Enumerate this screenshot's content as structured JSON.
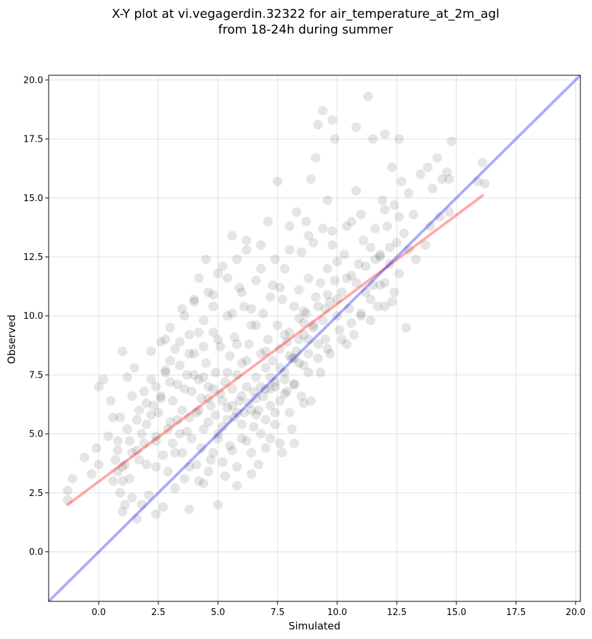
{
  "chart_data": {
    "type": "scatter",
    "title_lines": [
      "X-Y plot at vi.vegagerdin.32322 for air_temperature_at_2m_agl",
      "from 18-24h during summer"
    ],
    "xlabel": "Simulated",
    "ylabel": "Observed",
    "xlim": [
      -2.1,
      20.2
    ],
    "ylim": [
      -2.1,
      20.2
    ],
    "xticks": [
      0.0,
      2.5,
      5.0,
      7.5,
      10.0,
      12.5,
      15.0,
      17.5,
      20.0
    ],
    "yticks": [
      0.0,
      2.5,
      5.0,
      7.5,
      10.0,
      12.5,
      15.0,
      17.5,
      20.0
    ],
    "xtick_labels": [
      "0.0",
      "2.5",
      "5.0",
      "7.5",
      "10.0",
      "12.5",
      "15.0",
      "17.5",
      "20.0"
    ],
    "ytick_labels": [
      "0.0",
      "2.5",
      "5.0",
      "7.5",
      "10.0",
      "12.5",
      "15.0",
      "17.5",
      "20.0"
    ],
    "grid": true,
    "point_color": "#000000",
    "point_alpha": 0.1,
    "regression_line": {
      "x": [
        -1.3,
        16.1
      ],
      "y": [
        2.0,
        15.1
      ],
      "color": "#ff0000",
      "alpha": 0.33
    },
    "identity_line": {
      "x": [
        -2.1,
        20.2
      ],
      "y": [
        -2.1,
        20.2
      ],
      "color": "#0000ff",
      "alpha": 0.33
    },
    "points": [
      [
        -1.3,
        2.6
      ],
      [
        -1.3,
        2.2
      ],
      [
        -1.1,
        3.1
      ],
      [
        -0.6,
        4.0
      ],
      [
        -0.3,
        3.3
      ],
      [
        -0.1,
        4.4
      ],
      [
        0.0,
        3.7
      ],
      [
        0.0,
        7.0
      ],
      [
        0.2,
        7.3
      ],
      [
        0.4,
        4.9
      ],
      [
        0.5,
        6.4
      ],
      [
        0.6,
        5.7
      ],
      [
        0.7,
        3.9
      ],
      [
        0.8,
        4.3
      ],
      [
        0.8,
        3.4
      ],
      [
        0.9,
        5.7
      ],
      [
        0.9,
        2.5
      ],
      [
        1.0,
        3.0
      ],
      [
        1.0,
        1.7
      ],
      [
        1.0,
        8.5
      ],
      [
        1.1,
        3.7
      ],
      [
        1.1,
        2.0
      ],
      [
        1.2,
        7.4
      ],
      [
        1.3,
        4.7
      ],
      [
        1.3,
        3.1
      ],
      [
        1.4,
        6.6
      ],
      [
        1.4,
        2.3
      ],
      [
        1.5,
        7.8
      ],
      [
        1.6,
        4.3
      ],
      [
        1.6,
        1.4
      ],
      [
        1.7,
        6.0
      ],
      [
        1.7,
        3.9
      ],
      [
        1.8,
        2.0
      ],
      [
        1.9,
        6.8
      ],
      [
        1.9,
        4.6
      ],
      [
        2.0,
        3.7
      ],
      [
        2.0,
        5.4
      ],
      [
        2.1,
        2.4
      ],
      [
        2.2,
        8.5
      ],
      [
        2.2,
        7.3
      ],
      [
        2.3,
        6.2
      ],
      [
        2.4,
        4.7
      ],
      [
        2.4,
        3.6
      ],
      [
        2.4,
        1.6
      ],
      [
        2.5,
        5.9
      ],
      [
        2.6,
        8.9
      ],
      [
        2.6,
        6.6
      ],
      [
        2.7,
        4.1
      ],
      [
        2.7,
        1.9
      ],
      [
        2.8,
        7.7
      ],
      [
        2.9,
        5.2
      ],
      [
        2.9,
        3.4
      ],
      [
        3.0,
        9.5
      ],
      [
        3.0,
        8.1
      ],
      [
        3.1,
        6.4
      ],
      [
        3.1,
        4.6
      ],
      [
        3.2,
        2.7
      ],
      [
        3.3,
        7.1
      ],
      [
        3.3,
        5.6
      ],
      [
        3.4,
        8.9
      ],
      [
        3.5,
        10.3
      ],
      [
        3.5,
        6.0
      ],
      [
        3.5,
        4.2
      ],
      [
        3.6,
        3.1
      ],
      [
        3.7,
        7.5
      ],
      [
        3.7,
        5.1
      ],
      [
        3.8,
        9.2
      ],
      [
        3.8,
        1.8
      ],
      [
        3.9,
        6.8
      ],
      [
        3.9,
        4.8
      ],
      [
        4.0,
        8.4
      ],
      [
        4.0,
        10.7
      ],
      [
        4.1,
        5.9
      ],
      [
        4.1,
        3.7
      ],
      [
        4.2,
        7.3
      ],
      [
        4.2,
        11.6
      ],
      [
        4.3,
        6.5
      ],
      [
        4.3,
        4.4
      ],
      [
        4.4,
        9.8
      ],
      [
        4.4,
        2.9
      ],
      [
        4.5,
        8.0
      ],
      [
        4.5,
        12.4
      ],
      [
        4.6,
        5.5
      ],
      [
        4.6,
        7.0
      ],
      [
        4.7,
        6.2
      ],
      [
        4.7,
        3.9
      ],
      [
        4.8,
        9.3
      ],
      [
        4.8,
        10.9
      ],
      [
        4.9,
        5.8
      ],
      [
        4.9,
        7.6
      ],
      [
        5.0,
        11.8
      ],
      [
        5.0,
        4.8
      ],
      [
        5.0,
        2.0
      ],
      [
        5.1,
        6.7
      ],
      [
        5.1,
        8.7
      ],
      [
        5.2,
        12.1
      ],
      [
        5.2,
        5.3
      ],
      [
        5.3,
        7.2
      ],
      [
        5.3,
        3.2
      ],
      [
        5.4,
        10.0
      ],
      [
        5.4,
        6.1
      ],
      [
        5.5,
        8.3
      ],
      [
        5.5,
        4.5
      ],
      [
        5.6,
        13.4
      ],
      [
        5.6,
        6.9
      ],
      [
        5.7,
        5.7
      ],
      [
        5.7,
        9.1
      ],
      [
        5.8,
        7.5
      ],
      [
        5.8,
        2.8
      ],
      [
        5.9,
        11.2
      ],
      [
        5.9,
        6.4
      ],
      [
        6.0,
        8.0
      ],
      [
        6.0,
        4.8
      ],
      [
        6.1,
        10.4
      ],
      [
        6.1,
        5.9
      ],
      [
        6.2,
        7.0
      ],
      [
        6.2,
        12.8
      ],
      [
        6.3,
        6.3
      ],
      [
        6.3,
        8.8
      ],
      [
        6.4,
        4.2
      ],
      [
        6.4,
        9.6
      ],
      [
        6.5,
        6.8
      ],
      [
        6.5,
        5.3
      ],
      [
        6.6,
        11.5
      ],
      [
        6.6,
        7.4
      ],
      [
        6.7,
        6.0
      ],
      [
        6.7,
        3.7
      ],
      [
        6.8,
        8.4
      ],
      [
        6.8,
        13.0
      ],
      [
        6.9,
        6.6
      ],
      [
        6.9,
        10.1
      ],
      [
        7.0,
        7.8
      ],
      [
        7.0,
        5.6
      ],
      [
        7.1,
        9.0
      ],
      [
        7.1,
        14.0
      ],
      [
        7.2,
        6.9
      ],
      [
        7.2,
        4.8
      ],
      [
        7.3,
        8.1
      ],
      [
        7.3,
        11.3
      ],
      [
        7.4,
        7.2
      ],
      [
        7.4,
        5.9
      ],
      [
        7.5,
        9.6
      ],
      [
        7.5,
        15.7
      ],
      [
        7.6,
        8.6
      ],
      [
        7.6,
        6.4
      ],
      [
        7.7,
        10.7
      ],
      [
        7.7,
        4.2
      ],
      [
        7.8,
        7.6
      ],
      [
        7.8,
        12.0
      ],
      [
        7.9,
        8.9
      ],
      [
        7.9,
        6.8
      ],
      [
        8.0,
        9.3
      ],
      [
        8.0,
        13.8
      ],
      [
        8.1,
        8.2
      ],
      [
        8.1,
        5.2
      ],
      [
        8.2,
        10.4
      ],
      [
        8.2,
        7.1
      ],
      [
        8.3,
        14.4
      ],
      [
        8.3,
        8.5
      ],
      [
        8.4,
        11.1
      ],
      [
        8.4,
        9.0
      ],
      [
        8.5,
        6.6
      ],
      [
        8.5,
        12.7
      ],
      [
        8.6,
        9.7
      ],
      [
        8.6,
        7.9
      ],
      [
        8.7,
        14.0
      ],
      [
        8.7,
        10.1
      ],
      [
        8.8,
        8.4
      ],
      [
        8.8,
        11.6
      ],
      [
        8.9,
        6.4
      ],
      [
        8.9,
        15.8
      ],
      [
        9.0,
        9.5
      ],
      [
        9.0,
        13.1
      ],
      [
        9.1,
        10.8
      ],
      [
        9.1,
        16.7
      ],
      [
        9.2,
        8.8
      ],
      [
        9.2,
        18.1
      ],
      [
        9.3,
        11.4
      ],
      [
        9.3,
        7.6
      ],
      [
        9.4,
        13.7
      ],
      [
        9.4,
        18.7
      ],
      [
        9.5,
        10.3
      ],
      [
        9.5,
        9.0
      ],
      [
        9.6,
        12.0
      ],
      [
        9.6,
        14.9
      ],
      [
        9.7,
        10.6
      ],
      [
        9.7,
        8.4
      ],
      [
        9.8,
        13.6
      ],
      [
        9.8,
        18.3
      ],
      [
        9.9,
        11.5
      ],
      [
        9.9,
        17.5
      ],
      [
        10.0,
        10.0
      ],
      [
        10.0,
        12.3
      ],
      [
        10.1,
        9.4
      ],
      [
        10.2,
        11.0
      ],
      [
        10.3,
        12.6
      ],
      [
        10.4,
        8.8
      ],
      [
        10.5,
        10.3
      ],
      [
        10.6,
        14.0
      ],
      [
        10.6,
        11.7
      ],
      [
        10.7,
        9.2
      ],
      [
        10.8,
        15.3
      ],
      [
        10.8,
        18.0
      ],
      [
        10.9,
        12.2
      ],
      [
        11.0,
        10.1
      ],
      [
        11.1,
        13.2
      ],
      [
        11.2,
        11.0
      ],
      [
        11.3,
        19.3
      ],
      [
        11.4,
        12.9
      ],
      [
        11.5,
        11.3
      ],
      [
        11.5,
        17.5
      ],
      [
        11.6,
        13.7
      ],
      [
        11.7,
        10.4
      ],
      [
        11.8,
        12.5
      ],
      [
        11.9,
        14.9
      ],
      [
        12.0,
        11.4
      ],
      [
        12.0,
        17.7
      ],
      [
        12.1,
        13.8
      ],
      [
        12.2,
        12.2
      ],
      [
        12.3,
        10.6
      ],
      [
        12.3,
        16.3
      ],
      [
        12.4,
        14.7
      ],
      [
        12.5,
        13.1
      ],
      [
        12.6,
        11.8
      ],
      [
        12.6,
        17.5
      ],
      [
        12.7,
        15.7
      ],
      [
        12.8,
        13.5
      ],
      [
        12.9,
        9.5
      ],
      [
        13.0,
        12.8
      ],
      [
        13.2,
        14.3
      ],
      [
        13.3,
        12.4
      ],
      [
        13.5,
        16.0
      ],
      [
        13.7,
        13.0
      ],
      [
        13.8,
        16.3
      ],
      [
        13.9,
        13.8
      ],
      [
        14.0,
        15.4
      ],
      [
        14.2,
        16.7
      ],
      [
        14.3,
        14.2
      ],
      [
        14.4,
        15.8
      ],
      [
        14.6,
        16.1
      ],
      [
        14.7,
        14.4
      ],
      [
        14.8,
        17.4
      ],
      [
        14.7,
        15.8
      ],
      [
        15.9,
        15.7
      ],
      [
        16.1,
        16.5
      ],
      [
        16.2,
        15.6
      ],
      [
        5.6,
        6.2
      ],
      [
        6.0,
        6.6
      ],
      [
        6.4,
        6.0
      ],
      [
        6.8,
        7.0
      ],
      [
        7.2,
        7.4
      ],
      [
        7.6,
        7.8
      ],
      [
        8.0,
        8.3
      ],
      [
        8.2,
        8.2
      ],
      [
        8.6,
        9.2
      ],
      [
        9.0,
        9.6
      ],
      [
        5.2,
        6.4
      ],
      [
        5.8,
        5.9
      ],
      [
        6.6,
        6.5
      ],
      [
        7.0,
        6.9
      ],
      [
        7.4,
        7.0
      ],
      [
        7.8,
        7.3
      ],
      [
        8.4,
        8.0
      ],
      [
        8.8,
        9.0
      ],
      [
        9.4,
        9.8
      ],
      [
        4.8,
        6.9
      ],
      [
        4.4,
        7.4
      ],
      [
        4.0,
        7.5
      ],
      [
        3.6,
        6.9
      ],
      [
        4.2,
        6.0
      ],
      [
        4.6,
        6.5
      ],
      [
        5.4,
        7.6
      ],
      [
        6.2,
        8.1
      ],
      [
        7.0,
        8.5
      ],
      [
        7.8,
        9.2
      ],
      [
        8.6,
        10.2
      ],
      [
        9.6,
        10.9
      ],
      [
        10.4,
        11.6
      ],
      [
        11.2,
        12.1
      ],
      [
        11.8,
        12.6
      ],
      [
        12.2,
        12.9
      ],
      [
        11.6,
        12.4
      ],
      [
        10.8,
        11.4
      ],
      [
        10.0,
        10.7
      ],
      [
        9.2,
        10.4
      ],
      [
        8.4,
        9.9
      ],
      [
        3.8,
        8.4
      ],
      [
        3.4,
        7.9
      ],
      [
        3.0,
        7.2
      ],
      [
        2.6,
        6.5
      ],
      [
        2.2,
        5.8
      ],
      [
        1.8,
        5.0
      ],
      [
        1.4,
        4.2
      ],
      [
        1.0,
        3.6
      ],
      [
        0.6,
        3.0
      ],
      [
        6.6,
        9.6
      ],
      [
        5.8,
        8.8
      ],
      [
        5.0,
        9.0
      ],
      [
        4.4,
        8.7
      ],
      [
        5.6,
        10.1
      ],
      [
        6.0,
        11.0
      ],
      [
        4.2,
        9.3
      ],
      [
        3.2,
        8.6
      ],
      [
        2.8,
        9.0
      ],
      [
        3.6,
        10.0
      ],
      [
        4.8,
        10.4
      ],
      [
        4.0,
        10.6
      ],
      [
        6.4,
        10.3
      ],
      [
        7.2,
        10.8
      ],
      [
        7.6,
        11.2
      ],
      [
        5.2,
        3.8
      ],
      [
        5.6,
        4.3
      ],
      [
        6.2,
        4.7
      ],
      [
        6.8,
        5.0
      ],
      [
        7.4,
        5.4
      ],
      [
        8.0,
        5.9
      ],
      [
        8.6,
        6.3
      ],
      [
        4.6,
        3.4
      ],
      [
        4.2,
        3.0
      ],
      [
        3.8,
        3.6
      ],
      [
        3.2,
        4.2
      ],
      [
        2.4,
        4.9
      ],
      [
        5.0,
        5.0
      ],
      [
        5.4,
        5.6
      ],
      [
        6.0,
        5.4
      ],
      [
        6.6,
        5.8
      ],
      [
        7.2,
        6.2
      ],
      [
        7.8,
        6.7
      ],
      [
        8.2,
        7.1
      ],
      [
        8.8,
        7.6
      ],
      [
        9.2,
        8.2
      ],
      [
        9.6,
        8.6
      ],
      [
        10.2,
        9.0
      ],
      [
        10.6,
        9.7
      ],
      [
        11.0,
        10.0
      ],
      [
        11.4,
        10.7
      ],
      [
        11.8,
        11.3
      ],
      [
        12.4,
        11.0
      ],
      [
        12.0,
        10.4
      ],
      [
        11.4,
        9.8
      ],
      [
        3.0,
        5.5
      ],
      [
        3.4,
        5.0
      ],
      [
        3.8,
        5.7
      ],
      [
        4.4,
        5.2
      ],
      [
        4.8,
        4.2
      ],
      [
        5.8,
        3.6
      ],
      [
        6.4,
        3.3
      ],
      [
        7.0,
        4.4
      ],
      [
        7.6,
        4.6
      ],
      [
        8.2,
        4.6
      ],
      [
        1.2,
        5.2
      ],
      [
        0.8,
        4.7
      ],
      [
        1.6,
        5.6
      ],
      [
        2.0,
        6.3
      ],
      [
        2.4,
        7.0
      ],
      [
        2.8,
        7.6
      ],
      [
        6.8,
        12.0
      ],
      [
        5.4,
        11.6
      ],
      [
        4.6,
        11.0
      ],
      [
        5.8,
        12.4
      ],
      [
        6.2,
        13.2
      ],
      [
        7.4,
        12.4
      ],
      [
        8.0,
        12.8
      ],
      [
        8.8,
        13.4
      ],
      [
        9.8,
        13.0
      ],
      [
        10.4,
        13.8
      ],
      [
        11.0,
        14.3
      ],
      [
        12.0,
        14.5
      ],
      [
        12.6,
        14.2
      ],
      [
        13.0,
        15.2
      ]
    ]
  }
}
